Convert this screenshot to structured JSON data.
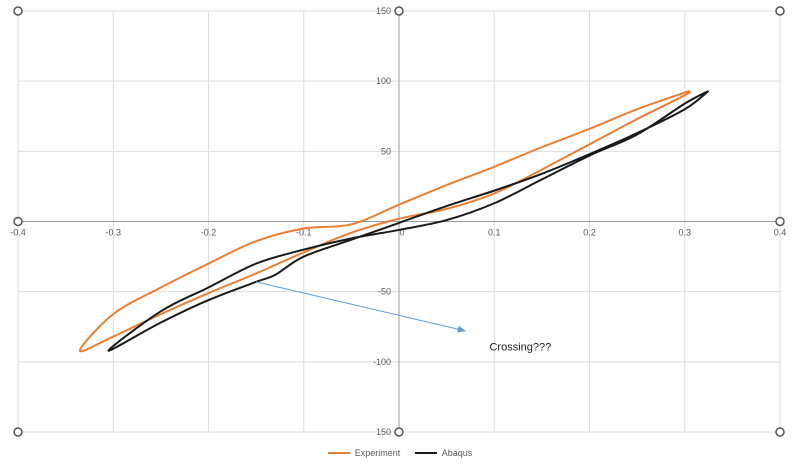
{
  "chart_data": {
    "type": "line",
    "title": "",
    "xlabel": "",
    "ylabel": "",
    "xlim": [
      -0.4,
      0.4
    ],
    "ylim": [
      -150,
      150
    ],
    "xticks": [
      "-0.4",
      "-0.3",
      "-0.2",
      "-0.1",
      "0",
      "0.1",
      "0.2",
      "0.3",
      "0.4"
    ],
    "yticks": [
      "150",
      "100",
      "50",
      "-50",
      "-100",
      "150"
    ],
    "grid": true,
    "legend_position": "bottom",
    "series": [
      {
        "name": "Experiment",
        "color": "#ED7D31",
        "x": [
          0.305,
          0.25,
          0.2,
          0.15,
          0.1,
          0.05,
          0.0,
          -0.05,
          -0.1,
          -0.15,
          -0.2,
          -0.25,
          -0.3,
          -0.335,
          -0.3,
          -0.25,
          -0.2,
          -0.15,
          -0.1,
          -0.05,
          0.0,
          0.05,
          0.1,
          0.15,
          0.2,
          0.25,
          0.3,
          0.305
        ],
        "y": [
          93,
          80,
          66,
          53,
          39,
          26,
          12,
          -2,
          -5,
          -14,
          -30,
          -47,
          -66,
          -92,
          -82,
          -66,
          -51,
          -37,
          -22,
          -8,
          2,
          9,
          20,
          37,
          55,
          73,
          90,
          93
        ]
      },
      {
        "name": "Abaqus",
        "color": "#1a1a1a",
        "x": [
          0.325,
          0.3,
          0.25,
          0.2,
          0.15,
          0.1,
          0.05,
          0.0,
          -0.05,
          -0.1,
          -0.13,
          -0.15,
          -0.2,
          -0.25,
          -0.305,
          -0.25,
          -0.2,
          -0.15,
          -0.1,
          -0.05,
          0.0,
          0.05,
          0.1,
          0.15,
          0.2,
          0.25,
          0.3,
          0.325
        ],
        "y": [
          93,
          80,
          63,
          48,
          34,
          22,
          11,
          -1,
          -13,
          -25,
          -38,
          -43,
          -56,
          -72,
          -92,
          -64,
          -47,
          -30,
          -20,
          -12,
          -6,
          1,
          13,
          30,
          47,
          62,
          84,
          93
        ]
      }
    ],
    "annotations": [
      {
        "text": "Crossing???",
        "x": 0.095,
        "y": -92
      }
    ],
    "arrow": {
      "from": [
        -0.15,
        -43
      ],
      "to": [
        0.07,
        -78
      ],
      "color": "#5B9BD5"
    }
  }
}
